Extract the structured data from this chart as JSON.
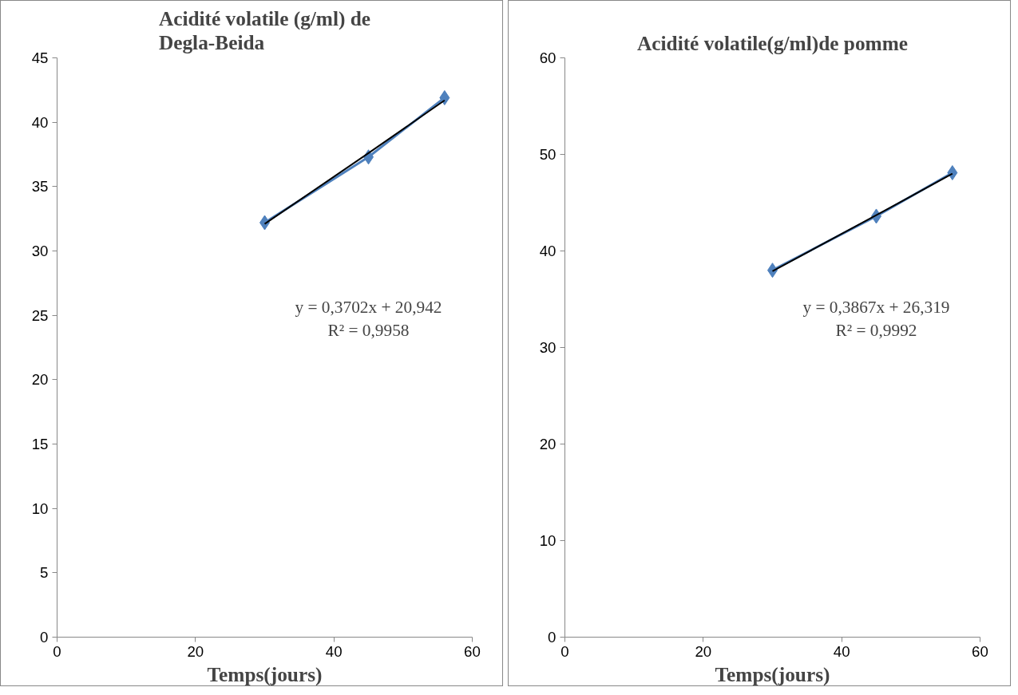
{
  "chart_data": [
    {
      "type": "line",
      "title": "Acidité volatile (g/ml) de Degla-Beida",
      "xlabel": "Temps(jours)",
      "x": [
        30,
        45,
        56
      ],
      "series": [
        {
          "color": "#4f81bd",
          "values": [
            32.2,
            37.3,
            41.9
          ],
          "marker": "diamond"
        },
        {
          "type": "line",
          "color": "#000000",
          "values": [
            32.1,
            37.6,
            41.7
          ],
          "marker": "none"
        }
      ],
      "xlim": [
        0,
        60
      ],
      "xticks": [
        0,
        20,
        40,
        60
      ],
      "ylim": [
        0,
        45
      ],
      "yticks": [
        0,
        5,
        10,
        15,
        20,
        25,
        30,
        35,
        40,
        45
      ],
      "annotations": [
        "y = 0,3702x + 20,942\nR² = 0,9958"
      ],
      "grid": false
    },
    {
      "type": "line",
      "title": "Acidité volatile(g/ml)de pomme",
      "xlabel": "Temps(jours)",
      "x": [
        30,
        45,
        56
      ],
      "series": [
        {
          "color": "#4f81bd",
          "values": [
            38.0,
            43.6,
            48.1
          ],
          "marker": "diamond"
        },
        {
          "type": "line",
          "color": "#000000",
          "values": [
            37.9,
            43.7,
            48.0
          ],
          "marker": "none"
        }
      ],
      "xlim": [
        0,
        60
      ],
      "xticks": [
        0,
        20,
        40,
        60
      ],
      "ylim": [
        0,
        60
      ],
      "yticks": [
        0,
        10,
        20,
        30,
        40,
        50,
        60
      ],
      "annotations": [
        "y = 0,3867x + 26,319\nR² = 0,9992"
      ],
      "grid": false
    }
  ]
}
